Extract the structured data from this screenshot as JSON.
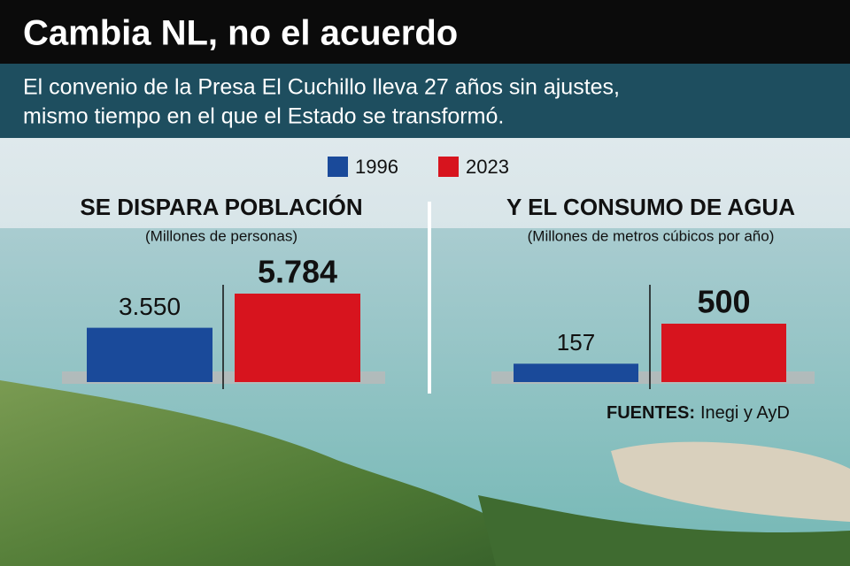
{
  "title": "Cambia NL, no el acuerdo",
  "subtitle": [
    "El convenio de la Presa El Cuchillo lleva 27 años sin ajustes,",
    "mismo tiempo en el que el Estado se transformó."
  ],
  "legend": [
    {
      "name": "1996",
      "color": "#1a4a9a"
    },
    {
      "name": "2023",
      "color": "#d7141e"
    }
  ],
  "chart_data": [
    {
      "type": "bar",
      "title": "SE DISPARA POBLACIÓN",
      "subtitle": "(Millones de personas)",
      "series": [
        {
          "color": "#1a4a9a",
          "values": [
            3.55
          ],
          "value_labels": [
            "3.550"
          ]
        },
        {
          "color": "#d7141e",
          "values": [
            5.784
          ],
          "value_labels": [
            "5.784"
          ]
        }
      ]
    },
    {
      "type": "bar",
      "title": "Y EL CONSUMO DE AGUA",
      "subtitle": "(Millones de metros cúbicos por año)",
      "series": [
        {
          "color": "#1a4a9a",
          "values": [
            157
          ]
        },
        {
          "color": "#d7141e",
          "values": [
            500
          ]
        }
      ]
    }
  ],
  "sources": {
    "label": "FUENTES:",
    "text": "Inegi y AyD"
  }
}
